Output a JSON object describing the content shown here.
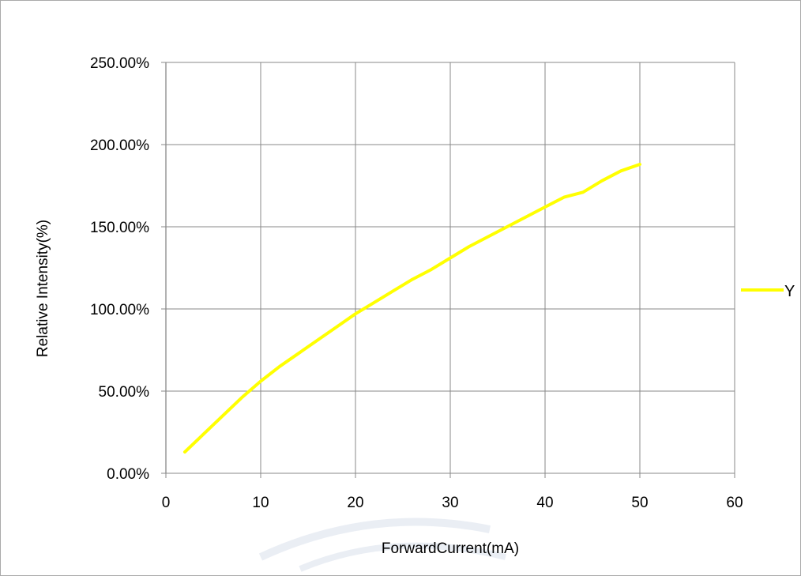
{
  "chart_data": {
    "type": "line",
    "xlabel": "ForwardCurrent(mA)",
    "ylabel": "Relative Intensity(%)",
    "xlim": [
      0,
      60
    ],
    "ylim": [
      0,
      2.5
    ],
    "x_ticks": [
      "0",
      "10",
      "20",
      "30",
      "40",
      "50",
      "60"
    ],
    "y_ticks": [
      "0.00%",
      "50.00%",
      "100.00%",
      "150.00%",
      "200.00%",
      "250.00%"
    ],
    "grid": true,
    "legend_position": "right",
    "series": [
      {
        "name": "Y",
        "color": "#FFFF00",
        "x": [
          2,
          4,
          6,
          8,
          10,
          12,
          14,
          16,
          18,
          20,
          22,
          24,
          26,
          28,
          30,
          32,
          34,
          36,
          38,
          40,
          42,
          44,
          46,
          48,
          50
        ],
        "y": [
          0.13,
          0.24,
          0.35,
          0.46,
          0.56,
          0.65,
          0.73,
          0.81,
          0.89,
          0.97,
          1.04,
          1.11,
          1.18,
          1.24,
          1.31,
          1.38,
          1.44,
          1.5,
          1.56,
          1.62,
          1.68,
          1.71,
          1.78,
          1.84,
          1.88
        ]
      }
    ]
  },
  "colors": {
    "grid": "#888888",
    "frame": "#aaaaaa",
    "series": "#FFFF00"
  }
}
